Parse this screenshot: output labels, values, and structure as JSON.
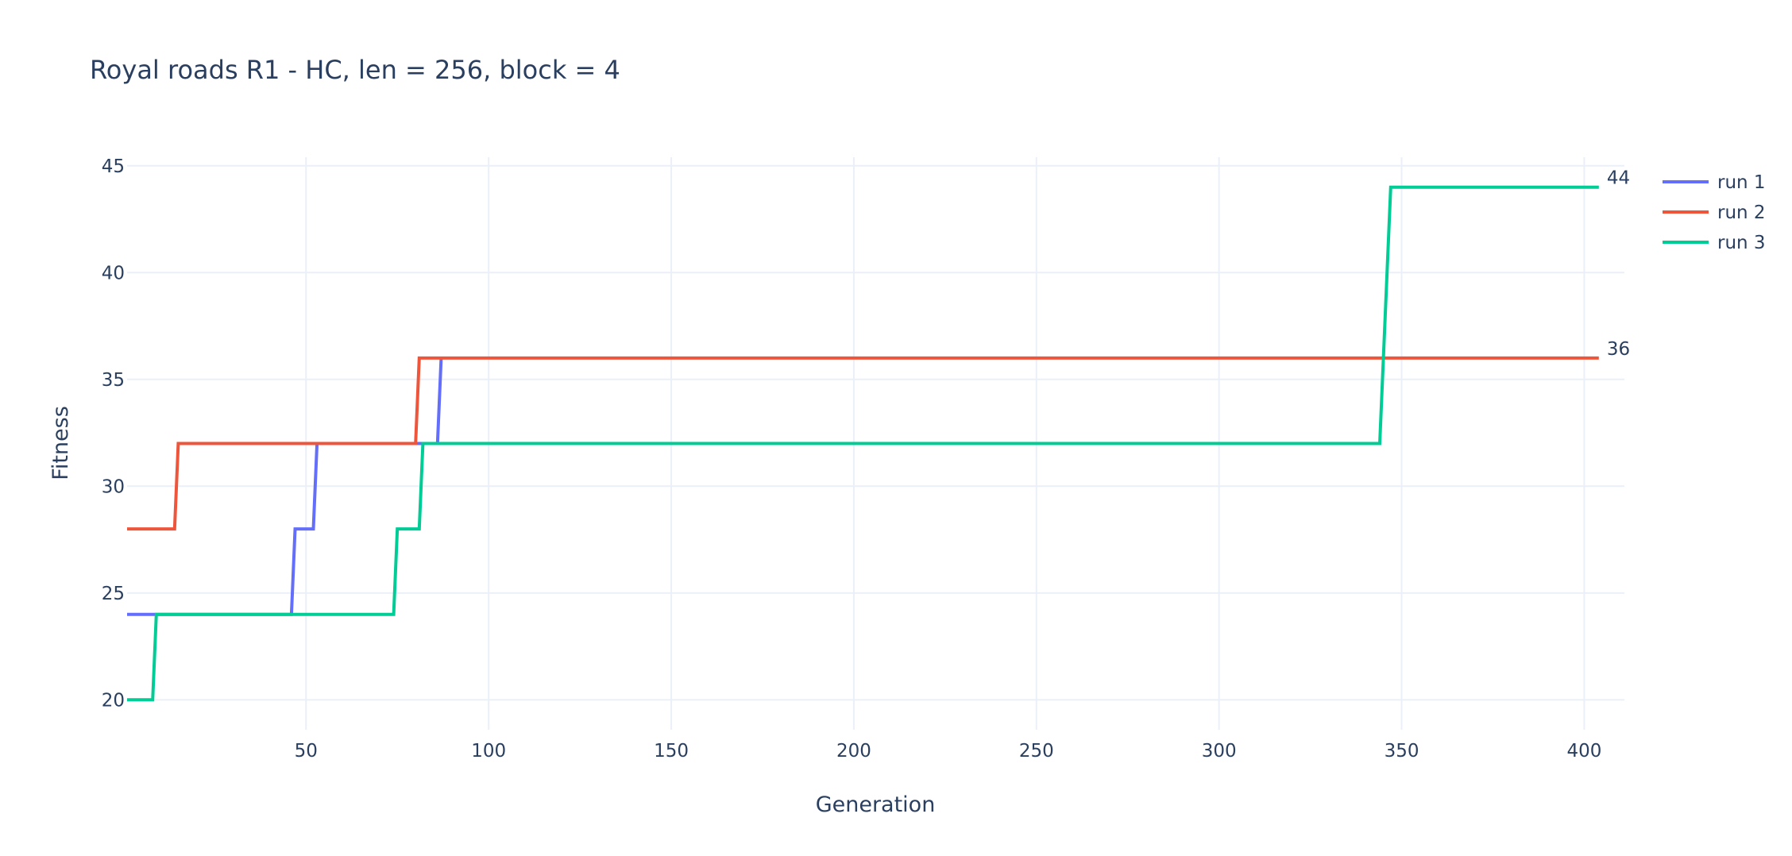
{
  "chart_data": {
    "type": "line",
    "title": "Royal roads R1 - HC, len = 256, block = 4",
    "xlabel": "Generation",
    "ylabel": "Fitness",
    "xlim": [
      1,
      411
    ],
    "ylim": [
      18.6,
      45.4
    ],
    "x_ticks": [
      50,
      100,
      150,
      200,
      250,
      300,
      350,
      400
    ],
    "y_ticks": [
      20,
      25,
      30,
      35,
      40,
      45
    ],
    "grid": true,
    "legend": "top-right",
    "series": [
      {
        "name": "run 1",
        "color": "#636efa",
        "points": [
          [
            1,
            24
          ],
          [
            46,
            24
          ],
          [
            47,
            28
          ],
          [
            52,
            28
          ],
          [
            53,
            32
          ],
          [
            86,
            32
          ],
          [
            87,
            36
          ]
        ]
      },
      {
        "name": "run 2",
        "color": "#ef553b",
        "points": [
          [
            1,
            28
          ],
          [
            14,
            28
          ],
          [
            15,
            32
          ],
          [
            80,
            32
          ],
          [
            81,
            36
          ],
          [
            404,
            36
          ]
        ],
        "end_label": "36"
      },
      {
        "name": "run 3",
        "color": "#00cc96",
        "points": [
          [
            1,
            20
          ],
          [
            8,
            20
          ],
          [
            9,
            24
          ],
          [
            74,
            24
          ],
          [
            75,
            28
          ],
          [
            81,
            28
          ],
          [
            82,
            32
          ],
          [
            344,
            32
          ],
          [
            347,
            44
          ],
          [
            404,
            44
          ]
        ],
        "end_label": "44"
      }
    ]
  }
}
